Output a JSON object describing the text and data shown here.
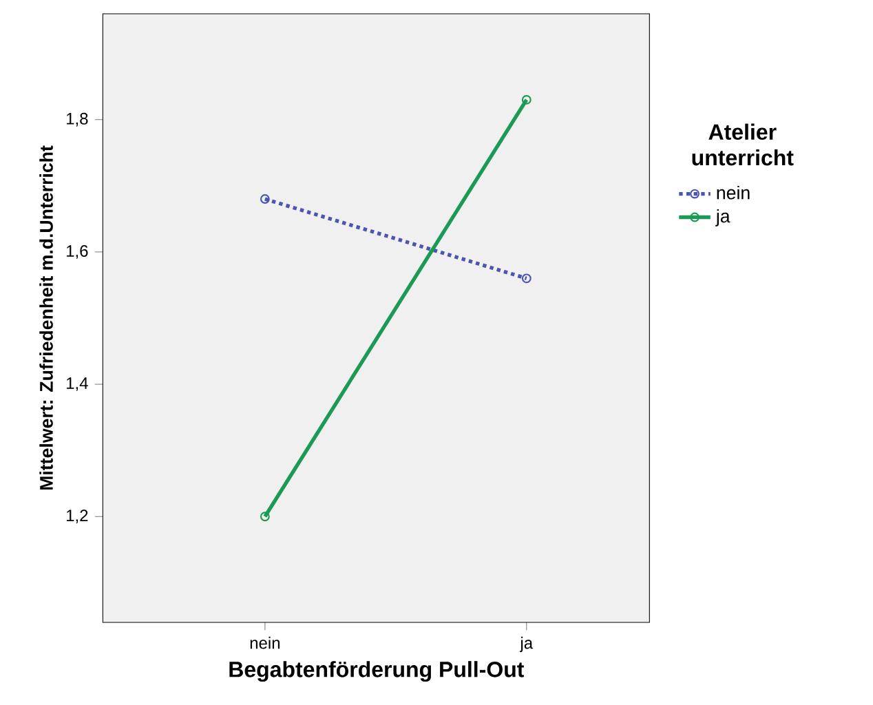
{
  "chart_data": {
    "type": "line",
    "xlabel": "Begabtenförderung Pull-Out",
    "ylabel": "Mittelwert: Zufriedenheit m.d.Unterricht",
    "legend_title": "Atelier unterricht",
    "categories": [
      "nein",
      "ja"
    ],
    "series": [
      {
        "name": "nein",
        "color": "#4a55b0",
        "values": [
          1.68,
          1.56
        ],
        "line_style": "dotted"
      },
      {
        "name": "ja",
        "color": "#1a9a55",
        "values": [
          1.2,
          1.83
        ],
        "line_style": "solid"
      }
    ],
    "ylim": [
      1.04,
      1.96
    ],
    "yticks": [
      {
        "value": 1.2,
        "label": "1,2"
      },
      {
        "value": 1.4,
        "label": "1,4"
      },
      {
        "value": 1.6,
        "label": "1,6"
      },
      {
        "value": 1.8,
        "label": "1,8"
      }
    ],
    "marker": "circle",
    "legend": "right",
    "grid": false
  }
}
